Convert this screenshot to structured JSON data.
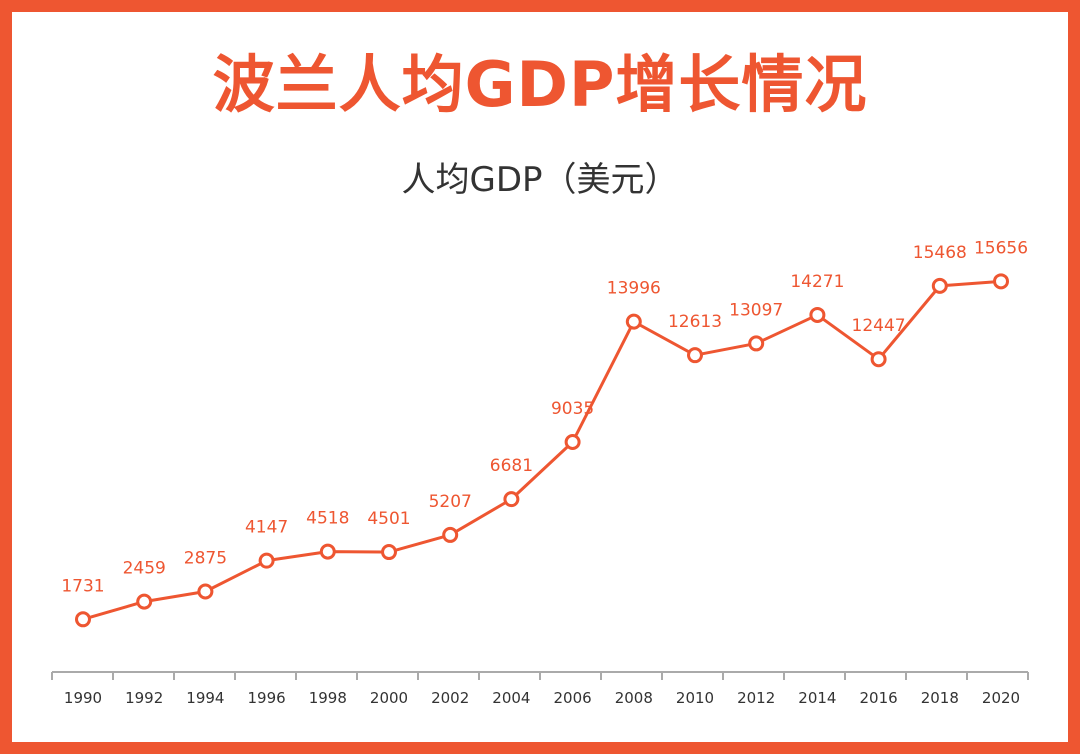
{
  "title": "波兰人均GDP增长情况",
  "subtitle": "人均GDP（美元）",
  "colors": {
    "accent": "#ee5631",
    "axis": "#aaaaaa",
    "tick_text": "#333333",
    "background": "#ffffff"
  },
  "chart_data": {
    "type": "line",
    "title": "波兰人均GDP增长情况",
    "subtitle": "人均GDP（美元）",
    "xlabel": "",
    "ylabel": "",
    "grid": false,
    "legend": "none",
    "x": [
      "1990",
      "1992",
      "1994",
      "1996",
      "1998",
      "2000",
      "2002",
      "2004",
      "2006",
      "2008",
      "2010",
      "2012",
      "2014",
      "2016",
      "2018",
      "2020"
    ],
    "series": [
      {
        "values": [
          1731,
          2459,
          2875,
          4147,
          4518,
          4501,
          5207,
          6681,
          9035,
          13996,
          12613,
          13097,
          14271,
          12447,
          15468,
          15656
        ],
        "labels": [
          "1731",
          "2459",
          "2875",
          "4147",
          "4518",
          "4501",
          "5207",
          "6681",
          "9035",
          "13996",
          "12613",
          "13097",
          "14271",
          "12447",
          "15468",
          "15656"
        ]
      }
    ]
  }
}
